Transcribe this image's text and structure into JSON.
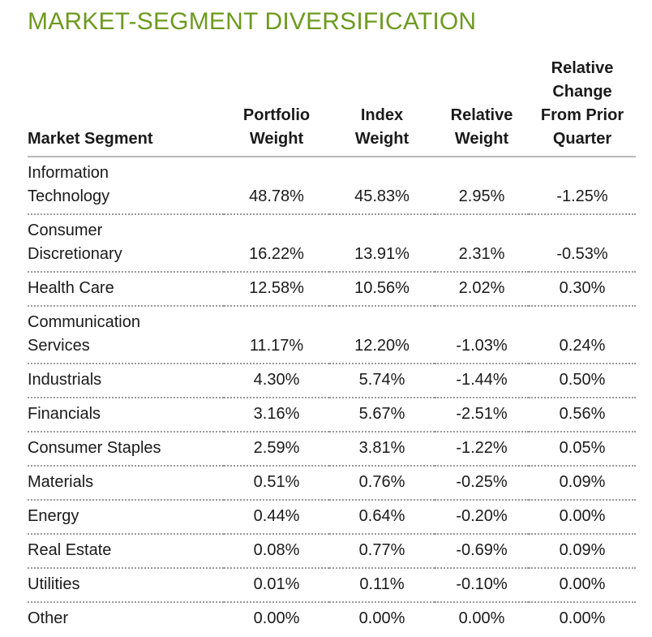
{
  "title": "MARKET-SEGMENT DIVERSIFICATION",
  "columns": {
    "segment": "Market Segment",
    "portfolio_weight": [
      "Portfolio",
      "Weight"
    ],
    "index_weight": [
      "Index",
      "Weight"
    ],
    "relative_weight": [
      "Relative",
      "Weight"
    ],
    "relative_change": [
      "Relative",
      "Change",
      "From Prior",
      "Quarter"
    ]
  },
  "rows": [
    {
      "segment": [
        "Information",
        "Technology"
      ],
      "portfolio_weight": "48.78%",
      "index_weight": "45.83%",
      "relative_weight": "2.95%",
      "relative_change": "-1.25%"
    },
    {
      "segment": [
        "Consumer",
        "Discretionary"
      ],
      "portfolio_weight": "16.22%",
      "index_weight": "13.91%",
      "relative_weight": "2.31%",
      "relative_change": "-0.53%"
    },
    {
      "segment": [
        "Health Care"
      ],
      "portfolio_weight": "12.58%",
      "index_weight": "10.56%",
      "relative_weight": "2.02%",
      "relative_change": "0.30%"
    },
    {
      "segment": [
        "Communication",
        "Services"
      ],
      "portfolio_weight": "11.17%",
      "index_weight": "12.20%",
      "relative_weight": "-1.03%",
      "relative_change": "0.24%"
    },
    {
      "segment": [
        "Industrials"
      ],
      "portfolio_weight": "4.30%",
      "index_weight": "5.74%",
      "relative_weight": "-1.44%",
      "relative_change": "0.50%"
    },
    {
      "segment": [
        "Financials"
      ],
      "portfolio_weight": "3.16%",
      "index_weight": "5.67%",
      "relative_weight": "-2.51%",
      "relative_change": "0.56%"
    },
    {
      "segment": [
        "Consumer Staples"
      ],
      "portfolio_weight": "2.59%",
      "index_weight": "3.81%",
      "relative_weight": "-1.22%",
      "relative_change": "0.05%"
    },
    {
      "segment": [
        "Materials"
      ],
      "portfolio_weight": "0.51%",
      "index_weight": "0.76%",
      "relative_weight": "-0.25%",
      "relative_change": "0.09%"
    },
    {
      "segment": [
        "Energy"
      ],
      "portfolio_weight": "0.44%",
      "index_weight": "0.64%",
      "relative_weight": "-0.20%",
      "relative_change": "0.00%"
    },
    {
      "segment": [
        "Real Estate"
      ],
      "portfolio_weight": "0.08%",
      "index_weight": "0.77%",
      "relative_weight": "-0.69%",
      "relative_change": "0.09%"
    },
    {
      "segment": [
        "Utilities"
      ],
      "portfolio_weight": "0.01%",
      "index_weight": "0.11%",
      "relative_weight": "-0.10%",
      "relative_change": "0.00%"
    },
    {
      "segment": [
        "Other"
      ],
      "portfolio_weight": "0.00%",
      "index_weight": "0.00%",
      "relative_weight": "0.00%",
      "relative_change": "0.00%"
    }
  ],
  "colors": {
    "title": "#6e9a1f",
    "text": "#1a1a1a",
    "rule": "#9a9a9a"
  }
}
